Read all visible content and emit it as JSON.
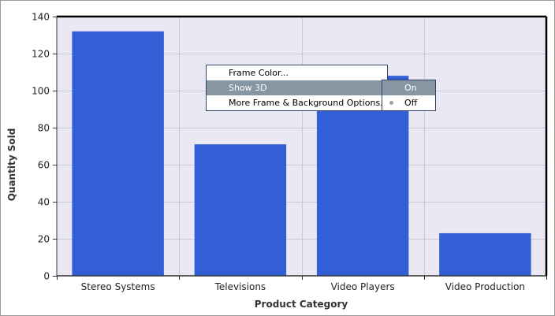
{
  "chart_data": {
    "type": "bar",
    "categories": [
      "Stereo Systems",
      "Televisions",
      "Video Players",
      "Video Production"
    ],
    "values": [
      132,
      71,
      108,
      23
    ],
    "xlabel": "Product Category",
    "ylabel": "Quantity Sold",
    "ylim": [
      0,
      140
    ],
    "yticks": [
      0,
      20,
      40,
      60,
      80,
      100,
      120,
      140
    ],
    "grid": true,
    "colors": {
      "bar": "#335fd6",
      "plot_background": "#e9e8f3",
      "grid": "#c9c8d9",
      "frame": "#000000"
    }
  },
  "context_menu": {
    "items": [
      {
        "label": "Frame Color..."
      },
      {
        "label": "Show 3D"
      },
      {
        "label": "More Frame & Background Options..."
      }
    ],
    "highlight_color": "#8796a3"
  },
  "submenu": {
    "items": [
      {
        "label": "On",
        "selected": false
      },
      {
        "label": "Off",
        "selected": true
      }
    ]
  }
}
